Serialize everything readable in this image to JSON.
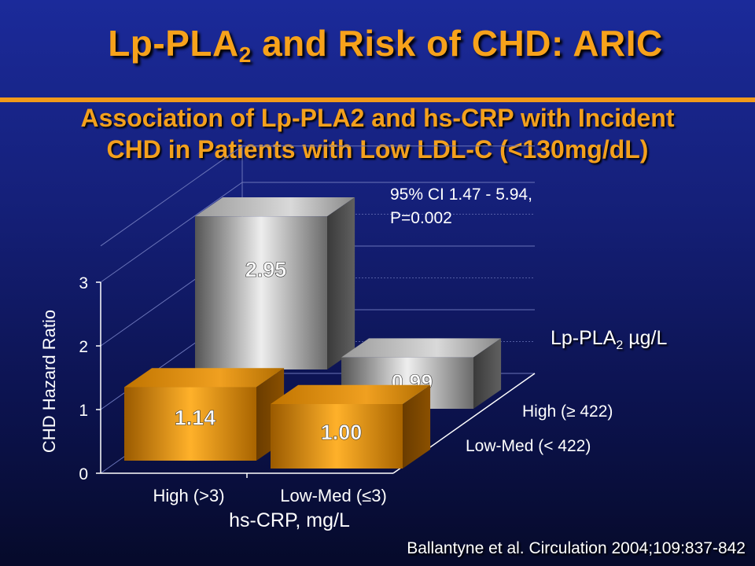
{
  "title": {
    "main": "Lp-PLA",
    "sub": "2",
    "rest": " and Risk of CHD: ARIC"
  },
  "subtitle": {
    "line1": "Association of Lp-PLA2 and hs-CRP with Incident",
    "line2": "CHD in Patients with Low LDL-C (<130mg/dL)"
  },
  "citation": "Ballantyne et al. Circulation 2004;109:837-842",
  "legend": {
    "prefix": "Lp-PLA",
    "sub": "2",
    "suffix": " µg/L"
  },
  "annotation": {
    "line1": "95% CI 1.47 - 5.94,",
    "line2": "P=0.002"
  },
  "colors": {
    "accent": "#f29a1a",
    "background": "#15207a",
    "gray_bar": "#8a8a8a",
    "orange_bar": "#d98a10"
  },
  "chart_data": {
    "type": "bar",
    "title": "",
    "xlabel": "hs-CRP, mg/L",
    "ylabel": "CHD Hazard Ratio",
    "ylim": [
      0,
      3
    ],
    "yticks": [
      "0",
      "1",
      "2",
      "3"
    ],
    "categories": [
      "High (>3)",
      "Low-Med (≤3)"
    ],
    "series": [
      {
        "name": "High (≥ 422)",
        "values": [
          2.95,
          0.99
        ],
        "labels": [
          "2.95",
          "0.99"
        ],
        "color": "#8a8a8a"
      },
      {
        "name": "Low-Med (< 422)",
        "values": [
          1.14,
          1.0
        ],
        "labels": [
          "1.14",
          "1.00"
        ],
        "color": "#d98a10"
      }
    ]
  }
}
